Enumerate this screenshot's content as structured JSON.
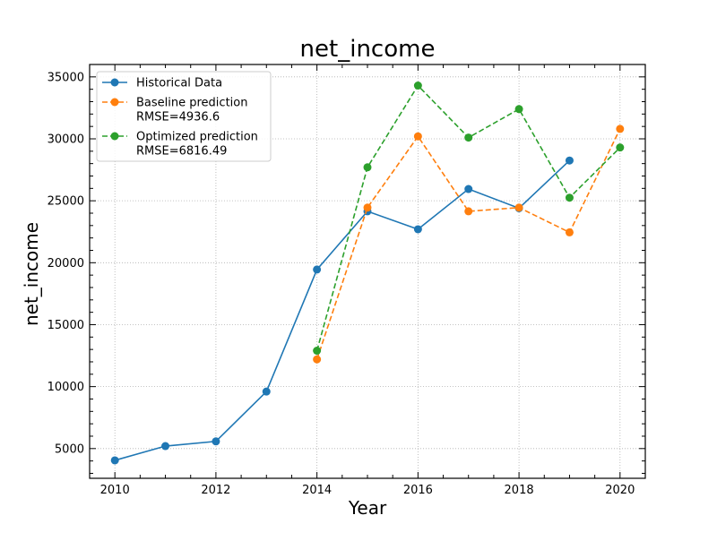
{
  "chart_data": {
    "type": "line",
    "title": "net_income",
    "xlabel": "Year",
    "ylabel": "net_income",
    "xlim": [
      2009.5,
      2020.5
    ],
    "ylim": [
      2600,
      36000
    ],
    "x_ticks": [
      2010,
      2012,
      2014,
      2016,
      2018,
      2020
    ],
    "y_ticks": [
      5000,
      10000,
      15000,
      20000,
      25000,
      30000,
      35000
    ],
    "grid": true,
    "legend_position": "top-left",
    "series": [
      {
        "name": "Historical Data",
        "color": "#1f77b4",
        "style": "solid",
        "x": [
          2010,
          2011,
          2012,
          2013,
          2014,
          2015,
          2016,
          2017,
          2018,
          2019
        ],
        "y": [
          4050,
          5200,
          5580,
          9600,
          19450,
          24150,
          22700,
          25950,
          24400,
          28250
        ]
      },
      {
        "name": "Baseline prediction",
        "rmse_label": "RMSE=4936.6",
        "color": "#ff7f0e",
        "style": "dashed",
        "x": [
          2014,
          2015,
          2016,
          2017,
          2018,
          2019,
          2020
        ],
        "y": [
          12200,
          24450,
          30200,
          24150,
          24450,
          22450,
          30800
        ]
      },
      {
        "name": "Optimized prediction",
        "rmse_label": "RMSE=6816.49",
        "color": "#2ca02c",
        "style": "dashed",
        "x": [
          2014,
          2015,
          2016,
          2017,
          2018,
          2019,
          2020
        ],
        "y": [
          12900,
          27700,
          34300,
          30100,
          32400,
          25250,
          29300
        ]
      }
    ]
  }
}
